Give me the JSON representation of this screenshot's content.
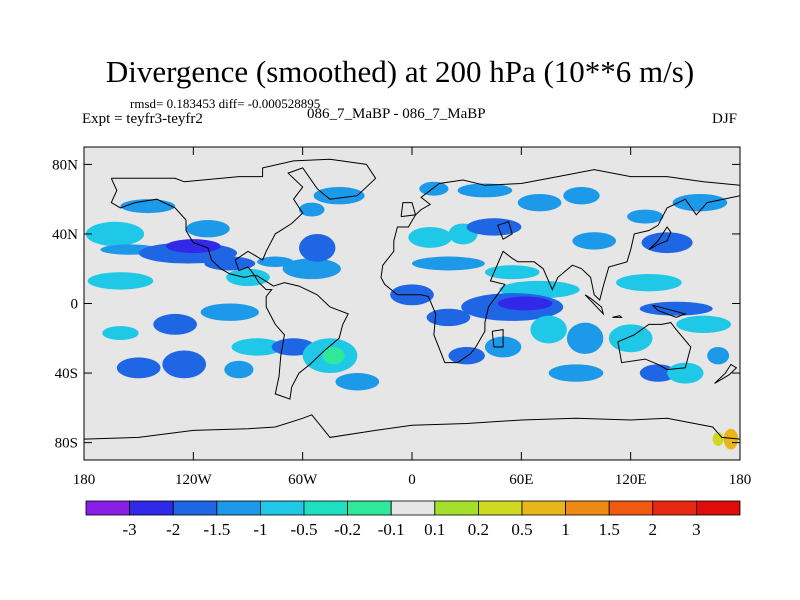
{
  "header": {
    "title": "Divergence (smoothed) at 200 hPa (10**6 m/s)",
    "stats": "rmsd= 0.183453 diff= -0.000528895",
    "left_label": "Expt = teyfr3-teyfr2",
    "center_label": "086_7_MaBP - 086_7_MaBP",
    "right_label": "DJF"
  },
  "map": {
    "lon_range": [
      -180,
      180
    ],
    "lat_range": [
      -90,
      90
    ],
    "lat_ticks": [
      {
        "value": 80,
        "label": "80N"
      },
      {
        "value": 40,
        "label": "40N"
      },
      {
        "value": 0,
        "label": "0"
      },
      {
        "value": -40,
        "label": "40S"
      },
      {
        "value": -80,
        "label": "80S"
      }
    ],
    "lon_ticks": [
      {
        "value": -180,
        "label": "180"
      },
      {
        "value": -120,
        "label": "120W"
      },
      {
        "value": -60,
        "label": "60W"
      },
      {
        "value": 0,
        "label": "0"
      },
      {
        "value": 60,
        "label": "60E"
      },
      {
        "value": 120,
        "label": "120E"
      },
      {
        "value": 180,
        "label": "180"
      }
    ],
    "background_color": "#e6e6e6",
    "coast_color": "#000000",
    "blobs": [
      {
        "lon": -163,
        "lat": 40,
        "rlon": 16,
        "rlat": 7,
        "level": 4
      },
      {
        "lon": -155,
        "lat": 31,
        "rlon": 16,
        "rlat": 3,
        "level": 3
      },
      {
        "lon": -145,
        "lat": 56,
        "rlon": 15,
        "rlat": 4,
        "level": 3
      },
      {
        "lon": -123,
        "lat": 29,
        "rlon": 27,
        "rlat": 6,
        "level": 2
      },
      {
        "lon": -120,
        "lat": 33,
        "rlon": 15,
        "rlat": 4,
        "level": 1
      },
      {
        "lon": -160,
        "lat": 13,
        "rlon": 18,
        "rlat": 5,
        "level": 4
      },
      {
        "lon": -112,
        "lat": 43,
        "rlon": 12,
        "rlat": 5,
        "level": 3
      },
      {
        "lon": -100,
        "lat": 23,
        "rlon": 14,
        "rlat": 4,
        "level": 2
      },
      {
        "lon": -90,
        "lat": 15,
        "rlon": 12,
        "rlat": 5,
        "level": 4
      },
      {
        "lon": -75,
        "lat": 24,
        "rlon": 10,
        "rlat": 3,
        "level": 3
      },
      {
        "lon": -55,
        "lat": 20,
        "rlon": 16,
        "rlat": 6,
        "level": 3
      },
      {
        "lon": -52,
        "lat": 32,
        "rlon": 10,
        "rlat": 8,
        "level": 2
      },
      {
        "lon": -55,
        "lat": 54,
        "rlon": 7,
        "rlat": 4,
        "level": 3
      },
      {
        "lon": -40,
        "lat": 62,
        "rlon": 14,
        "rlat": 5,
        "level": 3
      },
      {
        "lon": -130,
        "lat": -12,
        "rlon": 12,
        "rlat": 6,
        "level": 2
      },
      {
        "lon": -160,
        "lat": -17,
        "rlon": 10,
        "rlat": 4,
        "level": 4
      },
      {
        "lon": -100,
        "lat": -5,
        "rlon": 16,
        "rlat": 5,
        "level": 3
      },
      {
        "lon": -85,
        "lat": -25,
        "rlon": 14,
        "rlat": 5,
        "level": 4
      },
      {
        "lon": -150,
        "lat": -37,
        "rlon": 12,
        "rlat": 6,
        "level": 2
      },
      {
        "lon": -125,
        "lat": -35,
        "rlon": 12,
        "rlat": 8,
        "level": 2
      },
      {
        "lon": -95,
        "lat": -38,
        "rlon": 8,
        "rlat": 5,
        "level": 3
      },
      {
        "lon": -65,
        "lat": -25,
        "rlon": 12,
        "rlat": 5,
        "level": 2
      },
      {
        "lon": -45,
        "lat": -30,
        "rlon": 15,
        "rlat": 10,
        "level": 4
      },
      {
        "lon": -43,
        "lat": -30,
        "rlon": 6,
        "rlat": 5,
        "level": 6
      },
      {
        "lon": -30,
        "lat": -45,
        "rlon": 12,
        "rlat": 5,
        "level": 3
      },
      {
        "lon": 10,
        "lat": 38,
        "rlon": 12,
        "rlat": 6,
        "level": 4
      },
      {
        "lon": 12,
        "lat": 66,
        "rlon": 8,
        "rlat": 4,
        "level": 3
      },
      {
        "lon": 28,
        "lat": 40,
        "rlon": 8,
        "rlat": 6,
        "level": 4
      },
      {
        "lon": 45,
        "lat": 44,
        "rlon": 15,
        "rlat": 5,
        "level": 2
      },
      {
        "lon": 20,
        "lat": 23,
        "rlon": 20,
        "rlat": 4,
        "level": 3
      },
      {
        "lon": 55,
        "lat": 18,
        "rlon": 15,
        "rlat": 4,
        "level": 4
      },
      {
        "lon": 70,
        "lat": 8,
        "rlon": 22,
        "rlat": 5,
        "level": 4
      },
      {
        "lon": 0,
        "lat": 5,
        "rlon": 12,
        "rlat": 6,
        "level": 2
      },
      {
        "lon": 20,
        "lat": -8,
        "rlon": 12,
        "rlat": 5,
        "level": 2
      },
      {
        "lon": 55,
        "lat": -2,
        "rlon": 28,
        "rlat": 8,
        "level": 2
      },
      {
        "lon": 62,
        "lat": 0,
        "rlon": 15,
        "rlat": 4,
        "level": 1
      },
      {
        "lon": 40,
        "lat": 65,
        "rlon": 15,
        "rlat": 4,
        "level": 3
      },
      {
        "lon": 70,
        "lat": 58,
        "rlon": 12,
        "rlat": 5,
        "level": 3
      },
      {
        "lon": 93,
        "lat": 62,
        "rlon": 10,
        "rlat": 5,
        "level": 3
      },
      {
        "lon": 100,
        "lat": 36,
        "rlon": 12,
        "rlat": 5,
        "level": 3
      },
      {
        "lon": 128,
        "lat": 50,
        "rlon": 10,
        "rlat": 4,
        "level": 3
      },
      {
        "lon": 140,
        "lat": 35,
        "rlon": 14,
        "rlat": 6,
        "level": 2
      },
      {
        "lon": 158,
        "lat": 58,
        "rlon": 15,
        "rlat": 5,
        "level": 3
      },
      {
        "lon": 130,
        "lat": 12,
        "rlon": 18,
        "rlat": 5,
        "level": 4
      },
      {
        "lon": 145,
        "lat": -3,
        "rlon": 20,
        "rlat": 4,
        "level": 2
      },
      {
        "lon": 160,
        "lat": -12,
        "rlon": 15,
        "rlat": 5,
        "level": 4
      },
      {
        "lon": 120,
        "lat": -20,
        "rlon": 12,
        "rlat": 8,
        "level": 4
      },
      {
        "lon": 95,
        "lat": -20,
        "rlon": 10,
        "rlat": 9,
        "level": 3
      },
      {
        "lon": 75,
        "lat": -15,
        "rlon": 10,
        "rlat": 8,
        "level": 4
      },
      {
        "lon": 50,
        "lat": -25,
        "rlon": 10,
        "rlat": 6,
        "level": 3
      },
      {
        "lon": 30,
        "lat": -30,
        "rlon": 10,
        "rlat": 5,
        "level": 2
      },
      {
        "lon": 90,
        "lat": -40,
        "rlon": 15,
        "rlat": 5,
        "level": 3
      },
      {
        "lon": 135,
        "lat": -40,
        "rlon": 10,
        "rlat": 5,
        "level": 2
      },
      {
        "lon": 150,
        "lat": -40,
        "rlon": 10,
        "rlat": 6,
        "level": 4
      },
      {
        "lon": 168,
        "lat": -30,
        "rlon": 6,
        "rlat": 5,
        "level": 3
      },
      {
        "lon": 175,
        "lat": -78,
        "rlon": 4,
        "rlat": 6,
        "level": 10
      },
      {
        "lon": 168,
        "lat": -78,
        "rlon": 3,
        "rlat": 4,
        "level": 9
      },
      {
        "lon": 155,
        "lat": -78,
        "rlon": 3,
        "rlat": 3,
        "level": 7
      }
    ],
    "coastlines": [
      [
        [
          -165,
          72
        ],
        [
          -130,
          72
        ],
        [
          -125,
          70
        ],
        [
          -95,
          73
        ],
        [
          -82,
          73
        ],
        [
          -82,
          78
        ],
        [
          -65,
          82
        ],
        [
          -45,
          83
        ],
        [
          -25,
          80
        ],
        [
          -20,
          72
        ],
        [
          -30,
          62
        ],
        [
          -45,
          60
        ],
        [
          -52,
          66
        ],
        [
          -60,
          78
        ],
        [
          -68,
          75
        ],
        [
          -60,
          67
        ],
        [
          -65,
          60
        ],
        [
          -60,
          52
        ],
        [
          -66,
          46
        ],
        [
          -75,
          40
        ],
        [
          -80,
          30
        ],
        [
          -82,
          25
        ],
        [
          -90,
          30
        ],
        [
          -97,
          25
        ],
        [
          -95,
          19
        ],
        [
          -90,
          21
        ],
        [
          -87,
          17
        ],
        [
          -84,
          12
        ],
        [
          -80,
          8
        ],
        [
          -77,
          8
        ],
        [
          -80,
          4
        ],
        [
          -80,
          -2
        ],
        [
          -75,
          -12
        ],
        [
          -70,
          -18
        ],
        [
          -72,
          -30
        ],
        [
          -73,
          -42
        ],
        [
          -75,
          -52
        ],
        [
          -67,
          -55
        ],
        [
          -66,
          -48
        ],
        [
          -62,
          -40
        ],
        [
          -56,
          -35
        ],
        [
          -48,
          -27
        ],
        [
          -40,
          -20
        ],
        [
          -38,
          -12
        ],
        [
          -35,
          -6
        ],
        [
          -45,
          -2
        ],
        [
          -52,
          5
        ],
        [
          -62,
          10
        ],
        [
          -70,
          12
        ],
        [
          -76,
          10
        ],
        [
          -85,
          16
        ],
        [
          -88,
          16
        ],
        [
          -92,
          15
        ],
        [
          -100,
          17
        ],
        [
          -105,
          20
        ],
        [
          -110,
          25
        ],
        [
          -112,
          32
        ],
        [
          -120,
          35
        ],
        [
          -124,
          42
        ],
        [
          -124,
          48
        ],
        [
          -130,
          55
        ],
        [
          -140,
          60
        ],
        [
          -152,
          58
        ],
        [
          -160,
          55
        ],
        [
          -165,
          58
        ],
        [
          -162,
          65
        ],
        [
          -165,
          72
        ]
      ],
      [
        [
          -10,
          36
        ],
        [
          -8,
          44
        ],
        [
          -2,
          44
        ],
        [
          2,
          51
        ],
        [
          5,
          54
        ],
        [
          10,
          57
        ],
        [
          5,
          61
        ],
        [
          15,
          69
        ],
        [
          28,
          71
        ],
        [
          40,
          68
        ],
        [
          60,
          69
        ],
        [
          80,
          73
        ],
        [
          100,
          77
        ],
        [
          120,
          73
        ],
        [
          140,
          73
        ],
        [
          160,
          70
        ],
        [
          180,
          68
        ],
        [
          180,
          62
        ],
        [
          162,
          58
        ],
        [
          156,
          51
        ],
        [
          150,
          60
        ],
        [
          140,
          55
        ],
        [
          135,
          45
        ],
        [
          130,
          42
        ],
        [
          122,
          40
        ],
        [
          120,
          31
        ],
        [
          118,
          24
        ],
        [
          108,
          21
        ],
        [
          105,
          10
        ],
        [
          103,
          2
        ],
        [
          100,
          5
        ],
        [
          98,
          15
        ],
        [
          93,
          20
        ],
        [
          88,
          22
        ],
        [
          80,
          15
        ],
        [
          77,
          8
        ],
        [
          72,
          20
        ],
        [
          67,
          24
        ],
        [
          58,
          24
        ],
        [
          55,
          26
        ],
        [
          50,
          30
        ],
        [
          43,
          13
        ],
        [
          51,
          11
        ],
        [
          42,
          -2
        ],
        [
          40,
          -11
        ],
        [
          40,
          -16
        ],
        [
          35,
          -25
        ],
        [
          32,
          -29
        ],
        [
          25,
          -34
        ],
        [
          18,
          -34
        ],
        [
          12,
          -18
        ],
        [
          13,
          -6
        ],
        [
          9,
          4
        ],
        [
          5,
          5
        ],
        [
          -8,
          5
        ],
        [
          -15,
          11
        ],
        [
          -17,
          15
        ],
        [
          -16,
          22
        ],
        [
          -10,
          30
        ],
        [
          -10,
          36
        ]
      ],
      [
        [
          113,
          -22
        ],
        [
          122,
          -18
        ],
        [
          130,
          -12
        ],
        [
          137,
          -12
        ],
        [
          142,
          -11
        ],
        [
          145,
          -15
        ],
        [
          153,
          -25
        ],
        [
          150,
          -37
        ],
        [
          140,
          -38
        ],
        [
          135,
          -35
        ],
        [
          128,
          -32
        ],
        [
          115,
          -34
        ],
        [
          113,
          -22
        ]
      ],
      [
        [
          -180,
          -78
        ],
        [
          -150,
          -77
        ],
        [
          -120,
          -73
        ],
        [
          -90,
          -72
        ],
        [
          -75,
          -71
        ],
        [
          -60,
          -66
        ],
        [
          -55,
          -64
        ],
        [
          -45,
          -77
        ],
        [
          -20,
          -73
        ],
        [
          0,
          -70
        ],
        [
          30,
          -69
        ],
        [
          60,
          -67
        ],
        [
          90,
          -66
        ],
        [
          120,
          -67
        ],
        [
          140,
          -66
        ],
        [
          165,
          -71
        ],
        [
          170,
          -77
        ],
        [
          180,
          -78
        ]
      ],
      [
        [
          44,
          -16
        ],
        [
          50,
          -15
        ],
        [
          50,
          -25
        ],
        [
          45,
          -25
        ],
        [
          44,
          -16
        ]
      ],
      [
        [
          166,
          -46
        ],
        [
          174,
          -41
        ],
        [
          178,
          -37
        ],
        [
          175,
          -35
        ],
        [
          172,
          -40
        ],
        [
          166,
          -46
        ]
      ],
      [
        [
          130,
          31
        ],
        [
          135,
          34
        ],
        [
          140,
          36
        ],
        [
          142,
          41
        ],
        [
          140,
          44
        ],
        [
          135,
          36
        ],
        [
          130,
          31
        ]
      ],
      [
        [
          -6,
          50
        ],
        [
          2,
          51
        ],
        [
          0,
          58
        ],
        [
          -5,
          58
        ],
        [
          -6,
          50
        ]
      ],
      [
        [
          95,
          5
        ],
        [
          105,
          -6
        ],
        [
          104,
          -2
        ],
        [
          98,
          3
        ],
        [
          95,
          5
        ]
      ],
      [
        [
          110,
          -8
        ],
        [
          115,
          -8
        ],
        [
          114,
          -7
        ],
        [
          110,
          -8
        ]
      ],
      [
        [
          132,
          -1
        ],
        [
          150,
          -6
        ],
        [
          145,
          -8
        ],
        [
          135,
          -4
        ],
        [
          132,
          -1
        ]
      ],
      [
        [
          47,
          45
        ],
        [
          53,
          47
        ],
        [
          55,
          40
        ],
        [
          50,
          37
        ],
        [
          47,
          45
        ]
      ]
    ]
  },
  "colorbar": {
    "labels": [
      "-3",
      "-2",
      "-1.5",
      "-1",
      "-0.5",
      "-0.2",
      "-0.1",
      "0.1",
      "0.2",
      "0.5",
      "1",
      "1.5",
      "2",
      "3"
    ],
    "colors": [
      "#8a1de6",
      "#3228e8",
      "#1f66e4",
      "#1c99e8",
      "#1ec8e6",
      "#1ee0c0",
      "#2fe89a",
      "#e6e6e6",
      "#a2e02c",
      "#cfd920",
      "#e8b61a",
      "#ee8a14",
      "#f05a10",
      "#e82810",
      "#e00c0c"
    ]
  }
}
